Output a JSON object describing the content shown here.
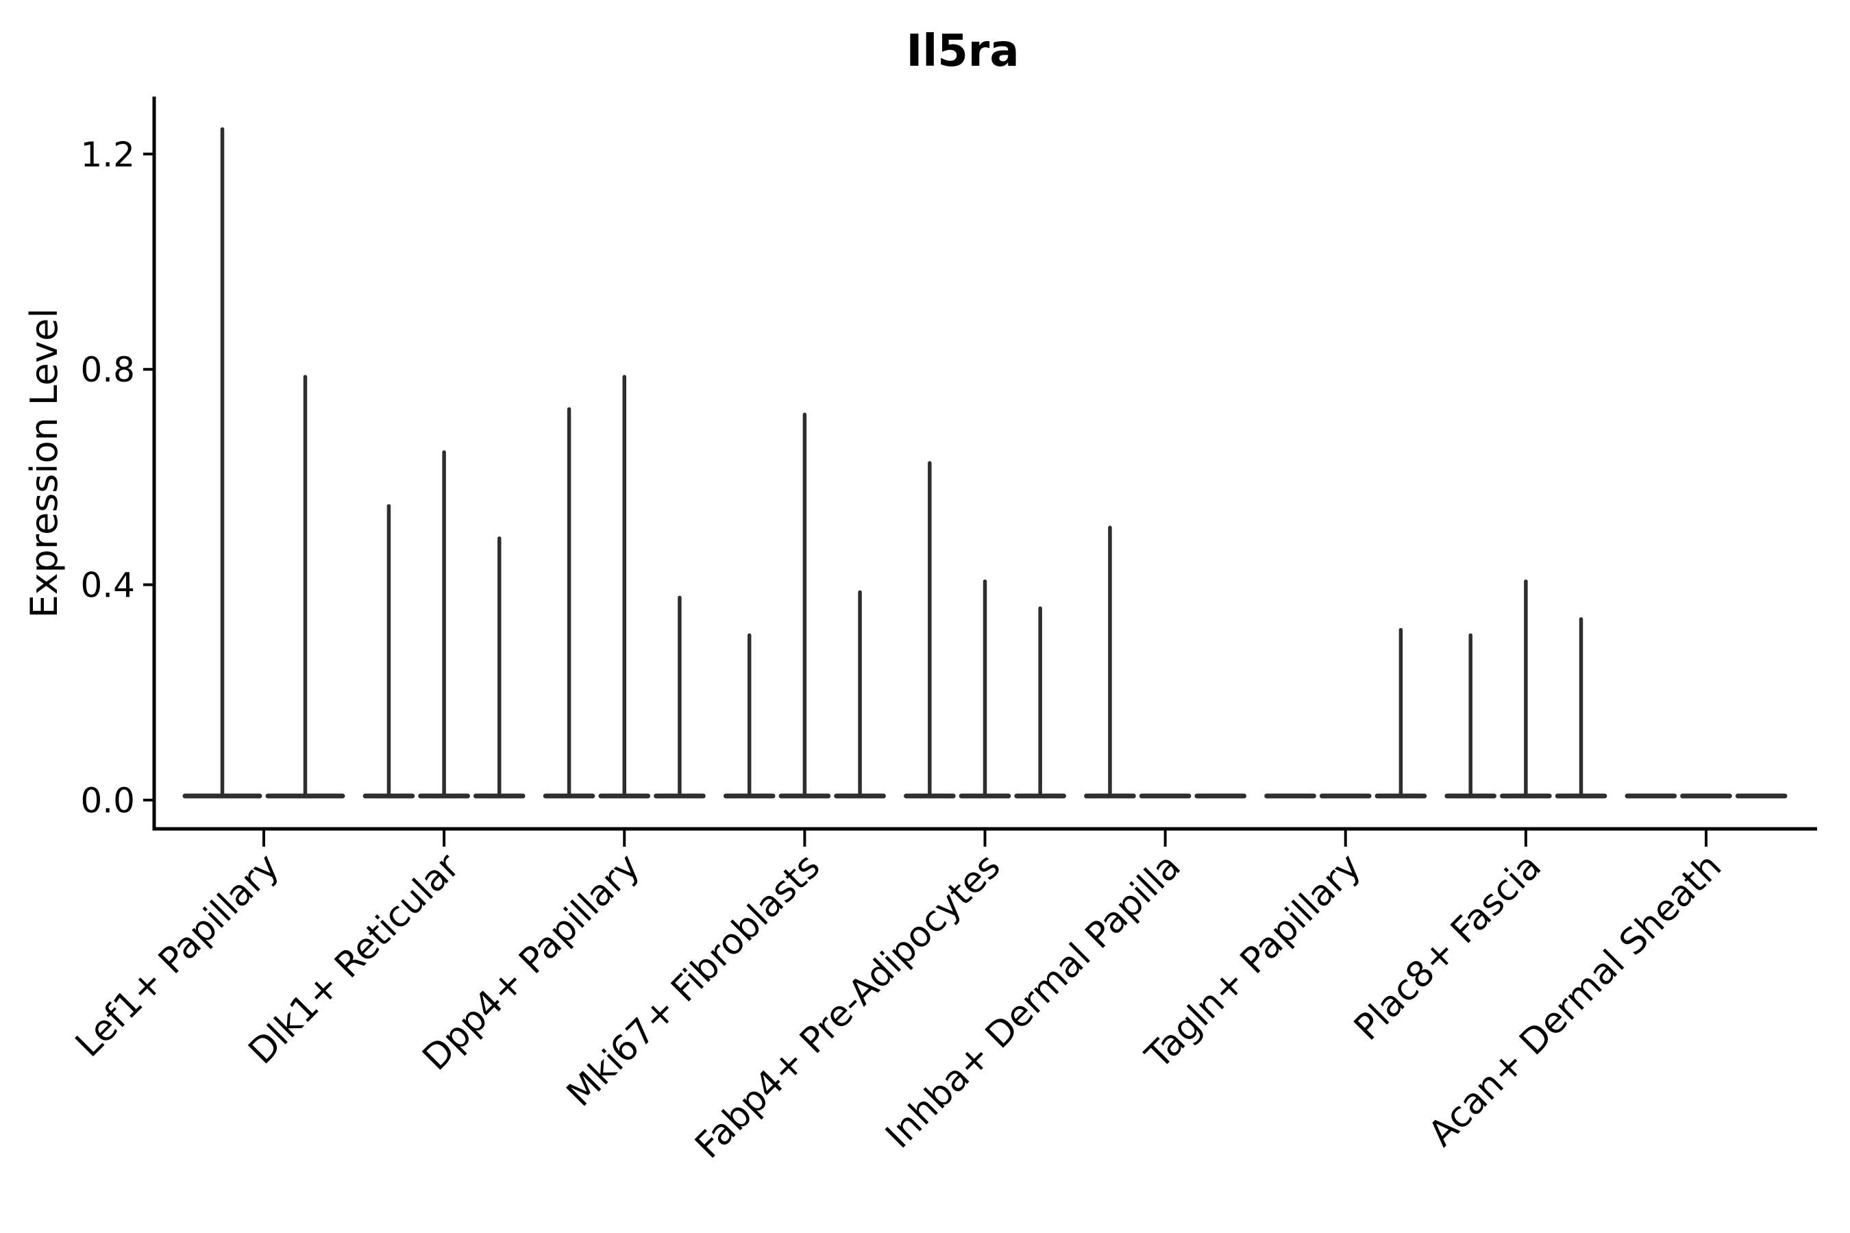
{
  "page": {
    "background": "#ffffff"
  },
  "chart_data": {
    "type": "violin",
    "title": "Il5ra",
    "xlabel": "",
    "ylabel": "Expression Level",
    "grid": false,
    "legend": "none",
    "x_tick_rotation": 45,
    "ylim": [
      -0.07,
      1.33
    ],
    "axis_color": "#000000",
    "violin_color": "#2e2e2e",
    "yticks": [
      {
        "label": "0.0",
        "value": 0.0
      },
      {
        "label": "0.4",
        "value": 0.4
      },
      {
        "label": "0.8",
        "value": 0.8
      },
      {
        "label": "1.2",
        "value": 1.2
      }
    ],
    "categories": [
      {
        "label": "Lef1+ Papillary",
        "violin_max_values": [
          1.25,
          0.79
        ]
      },
      {
        "label": "Dlk1+ Reticular",
        "violin_max_values": [
          0.55,
          0.65,
          0.49
        ]
      },
      {
        "label": "Dpp4+ Papillary",
        "violin_max_values": [
          0.73,
          0.79,
          0.38
        ]
      },
      {
        "label": "Mki67+ Fibroblasts",
        "violin_max_values": [
          0.31,
          0.72,
          0.39
        ]
      },
      {
        "label": "Fabp4+ Pre-Adipocytes",
        "violin_max_values": [
          0.63,
          0.41,
          0.36
        ]
      },
      {
        "label": "Inhba+ Dermal Papilla",
        "violin_max_values": [
          0.51,
          null,
          null
        ]
      },
      {
        "label": "Tagln+ Papillary",
        "violin_max_values": [
          null,
          null,
          0.32
        ]
      },
      {
        "label": "Plac8+ Fascia",
        "violin_max_values": [
          0.31,
          0.41,
          0.34
        ]
      },
      {
        "label": "Acan+ Dermal Sheath",
        "violin_max_values": [
          null,
          null,
          null
        ]
      }
    ]
  }
}
